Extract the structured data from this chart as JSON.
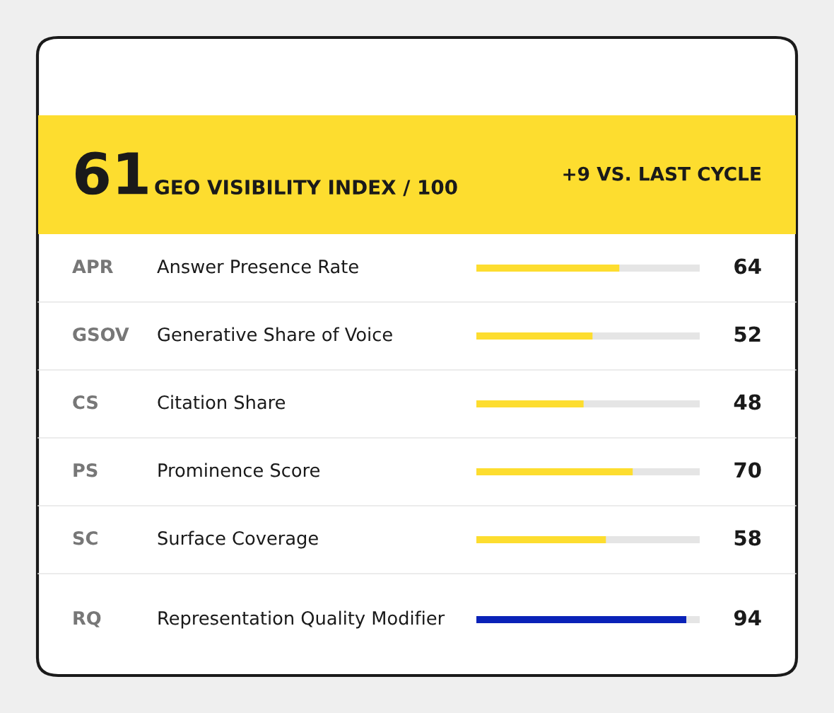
{
  "chart_data": {
    "type": "bar",
    "orientation": "horizontal",
    "title": "61",
    "subtitle": "GEO VISIBILITY INDEX / 100",
    "annotations": [
      "+9 VS. LAST CYCLE"
    ],
    "categories": [
      "Answer Presence Rate",
      "Generative Share of Voice",
      "Citation Share",
      "Prominence Score",
      "Surface Coverage",
      "Representation Quality Modifier"
    ],
    "y2_categories": [
      "APR",
      "GSOV",
      "CS",
      "PS",
      "SC",
      "RQ"
    ],
    "values": [
      64,
      52,
      48,
      70,
      58,
      94
    ],
    "colors": [
      "#fddd2f",
      "#fddd2f",
      "#fddd2f",
      "#fddd2f",
      "#fddd2f",
      "#0a22b8"
    ],
    "xlim": [
      0,
      100
    ],
    "data_labels": true
  }
}
